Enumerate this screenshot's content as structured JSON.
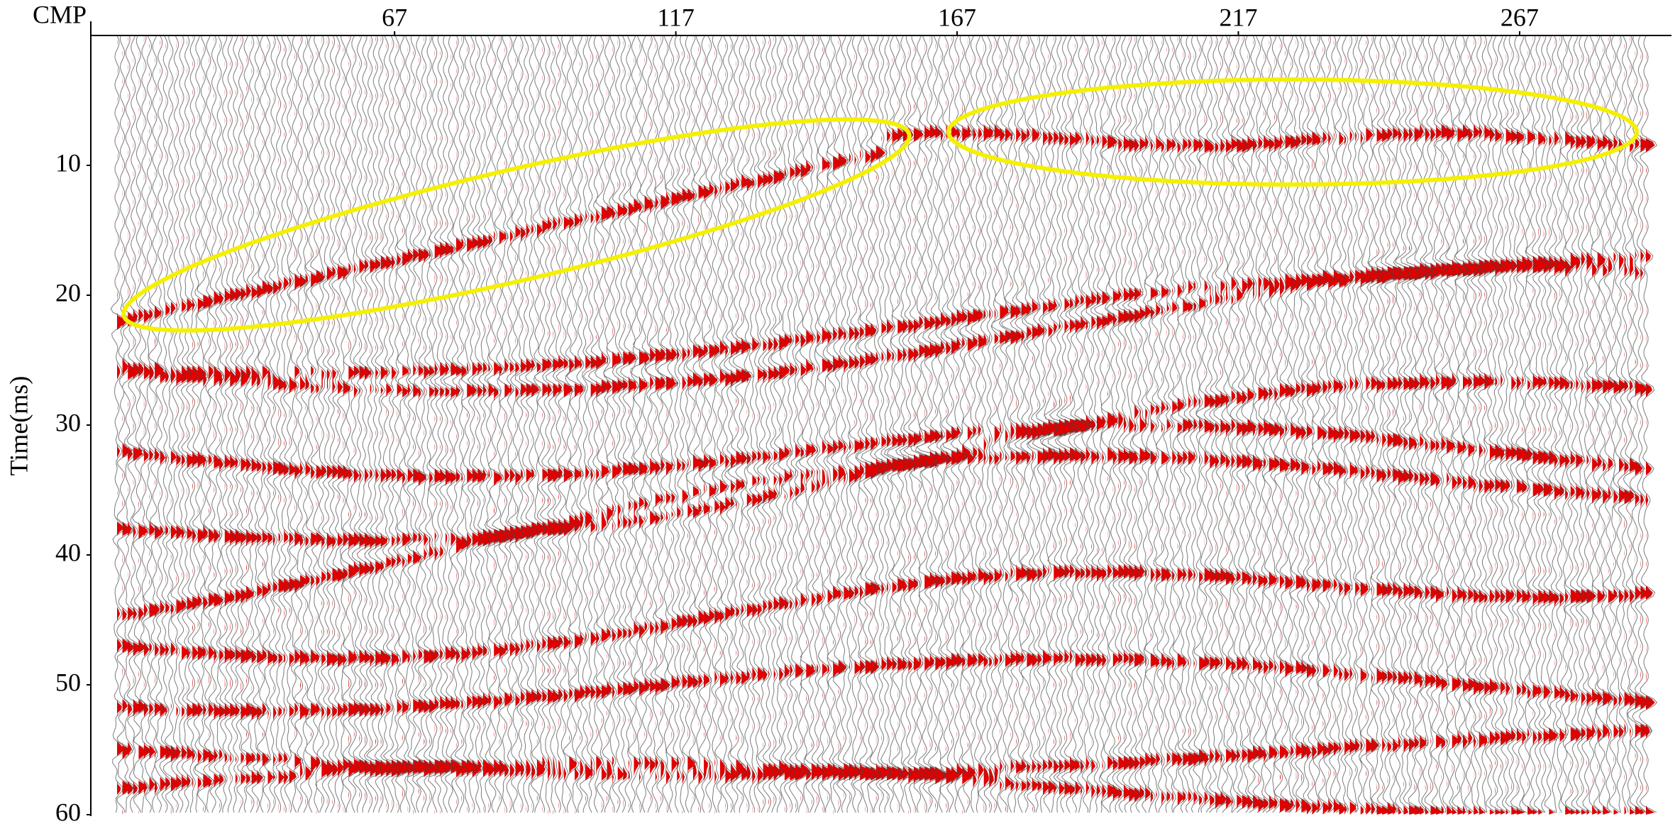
{
  "chart_data": {
    "type": "seismic",
    "x_label": "CMP",
    "y_label": "Time(ms)",
    "xlim": [
      13,
      294
    ],
    "xticks": [
      67,
      117,
      167,
      217,
      267
    ],
    "ylim": [
      0,
      60
    ],
    "yticks": [
      10,
      20,
      30,
      40,
      50,
      60
    ],
    "wiggle_color": "#444444",
    "fill_color": "#e00000",
    "annotation_color": "#f5f000"
  }
}
